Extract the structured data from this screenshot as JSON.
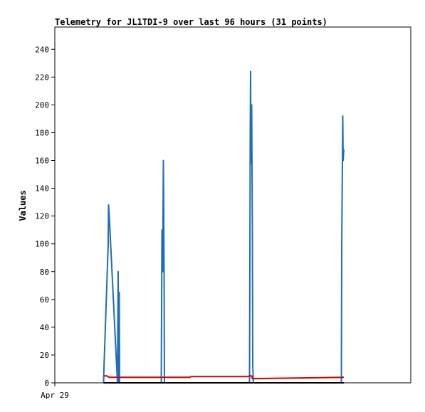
{
  "chart_data": {
    "type": "line",
    "title": "Telemetry for JL1TDI-9 over last 96 hours (31 points)",
    "xlabel": "",
    "ylabel": "Values",
    "x_tick_labels": [
      "Apr 29"
    ],
    "ylim": [
      0,
      256
    ],
    "y_ticks": [
      0,
      20,
      40,
      60,
      80,
      100,
      120,
      140,
      160,
      180,
      200,
      220,
      240
    ],
    "x_range": [
      0,
      100
    ],
    "grid": false,
    "legend": "none",
    "colors": {
      "blue": "#1f6fb8",
      "red": "#e00000",
      "black": "#000000",
      "axis": "#000000"
    },
    "series": [
      {
        "color": "#1f6fb8",
        "x": [
          13.7,
          13.8,
          15.0,
          15.1,
          15.3,
          17.6,
          17.8,
          17.9,
          18.1,
          18.2,
          18.4,
          29.9,
          30.1,
          30.3,
          30.5,
          30.7,
          30.8,
          30.9,
          54.7,
          54.9,
          55.0,
          55.1,
          55.3,
          55.5,
          55.6,
          55.8,
          80.5,
          80.6,
          80.9,
          81.0,
          81.2
        ],
        "y": [
          0,
          10,
          100,
          128,
          120,
          0,
          80,
          0,
          65,
          0,
          0,
          0,
          110,
          80,
          160,
          80,
          0,
          0,
          0,
          180,
          224,
          158,
          200,
          110,
          13,
          0,
          0,
          96,
          192,
          160,
          168
        ]
      },
      {
        "color": "#e00000",
        "x": [
          13.7,
          14.6,
          15.3,
          30.0,
          38.0,
          38.2,
          54.4,
          54.6,
          55.3,
          55.5,
          81.2
        ],
        "y": [
          5,
          5,
          4,
          4,
          4,
          4.5,
          4.5,
          5,
          5,
          3,
          4
        ]
      },
      {
        "color": "#000000",
        "x": [
          13.7,
          81.2
        ],
        "y": [
          0,
          0
        ]
      }
    ]
  }
}
